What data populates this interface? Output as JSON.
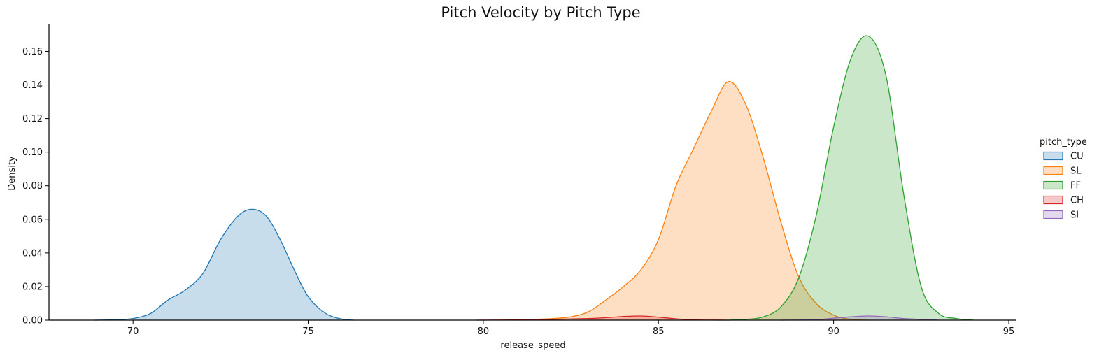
{
  "chart_data": {
    "type": "area",
    "title": "Pitch Velocity by Pitch Type",
    "xlabel": "release_speed",
    "ylabel": "Density",
    "xlim": [
      67.6,
      95.2
    ],
    "ylim": [
      0,
      0.176
    ],
    "x_ticks": [
      70,
      75,
      80,
      85,
      90,
      95
    ],
    "y_ticks": [
      0.0,
      0.02,
      0.04,
      0.06,
      0.08,
      0.1,
      0.12,
      0.14,
      0.16
    ],
    "y_tick_labels": [
      "0.00",
      "0.02",
      "0.04",
      "0.06",
      "0.08",
      "0.10",
      "0.12",
      "0.14",
      "0.16"
    ],
    "grid": false,
    "legend": {
      "title": "pitch_type",
      "placement": "right",
      "entries": [
        "CU",
        "SL",
        "FF",
        "CH",
        "SI"
      ]
    },
    "series": [
      {
        "name": "CU",
        "color": "#1f77b4",
        "x": [
          68.9,
          69.5,
          70.0,
          70.5,
          71.0,
          71.5,
          72.0,
          72.5,
          73.0,
          73.4,
          73.8,
          74.2,
          74.6,
          75.0,
          75.5,
          76.0,
          76.3
        ],
        "y": [
          0.0,
          0.0003,
          0.001,
          0.004,
          0.012,
          0.018,
          0.028,
          0.048,
          0.062,
          0.066,
          0.062,
          0.048,
          0.03,
          0.014,
          0.004,
          0.0005,
          0.0
        ]
      },
      {
        "name": "SL",
        "color": "#ff7f0e",
        "x": [
          81.0,
          81.5,
          82.0,
          82.5,
          83.0,
          83.5,
          84.0,
          84.5,
          85.0,
          85.5,
          86.0,
          86.5,
          87.0,
          87.5,
          88.0,
          88.5,
          89.0,
          89.5,
          90.0,
          90.5,
          91.0
        ],
        "y": [
          0.0,
          0.0005,
          0.001,
          0.002,
          0.005,
          0.012,
          0.02,
          0.03,
          0.048,
          0.08,
          0.102,
          0.124,
          0.142,
          0.128,
          0.096,
          0.058,
          0.026,
          0.01,
          0.003,
          0.0005,
          0.0
        ]
      },
      {
        "name": "FF",
        "color": "#2ca02c",
        "x": [
          87.0,
          87.5,
          88.0,
          88.5,
          89.0,
          89.5,
          90.0,
          90.5,
          91.0,
          91.5,
          92.0,
          92.5,
          93.0,
          93.5,
          94.0
        ],
        "y": [
          0.0,
          0.0005,
          0.002,
          0.008,
          0.025,
          0.062,
          0.115,
          0.156,
          0.169,
          0.145,
          0.075,
          0.02,
          0.004,
          0.001,
          0.0
        ]
      },
      {
        "name": "CH",
        "color": "#d62728",
        "x": [
          79.8,
          81.0,
          82.0,
          83.0,
          83.5,
          84.0,
          84.5,
          85.0,
          85.5,
          86.0,
          87.0
        ],
        "y": [
          0.0,
          0.0002,
          0.0005,
          0.001,
          0.0015,
          0.0022,
          0.0025,
          0.0018,
          0.0008,
          0.0002,
          0.0
        ]
      },
      {
        "name": "SI",
        "color": "#9467bd",
        "x": [
          88.5,
          89.5,
          90.0,
          90.5,
          91.0,
          91.5,
          92.0,
          93.0
        ],
        "y": [
          0.0,
          0.0003,
          0.0012,
          0.002,
          0.0025,
          0.002,
          0.001,
          0.0
        ]
      }
    ]
  }
}
